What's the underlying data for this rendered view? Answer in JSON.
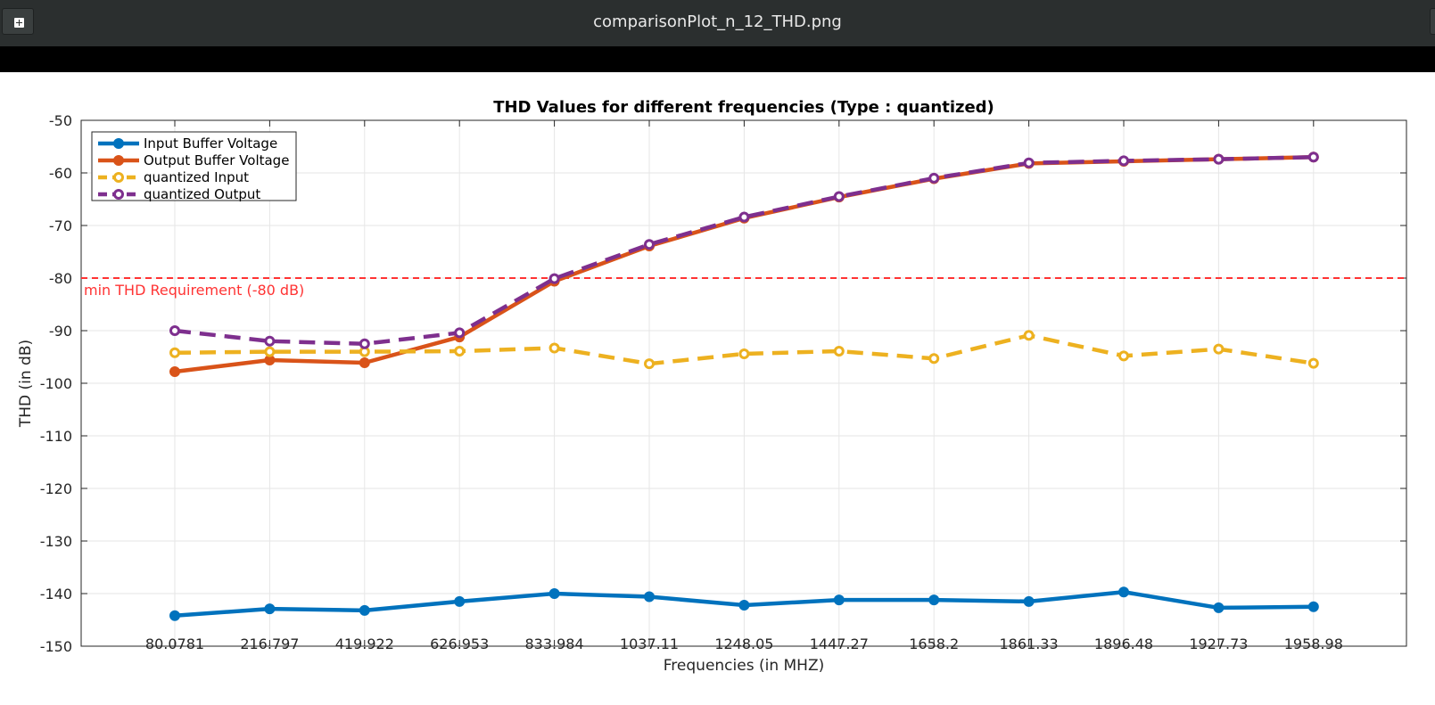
{
  "window": {
    "title": "comparisonPlot_n_12_THD.png"
  },
  "colors": {
    "titlebar": "#2b2f2f",
    "input_buffer": "#0072bd",
    "output_buffer": "#d95319",
    "quantized_input": "#edb120",
    "quantized_output": "#7e2f8e",
    "threshold": "#ff3333"
  },
  "chart_data": {
    "type": "line",
    "title": "THD Values for different frequencies (Type : quantized)",
    "xlabel": "Frequencies (in MHZ)",
    "ylabel": "THD (in dB)",
    "categories": [
      "80.0781",
      "216.797",
      "419.922",
      "626.953",
      "833.984",
      "1037.11",
      "1248.05",
      "1447.27",
      "1658.2",
      "1861.33",
      "1896.48",
      "1927.73",
      "1958.98"
    ],
    "ylim": [
      -150,
      -50
    ],
    "yticks": [
      -50,
      -60,
      -70,
      -80,
      -90,
      -100,
      -110,
      -120,
      -130,
      -140,
      -150
    ],
    "grid": true,
    "legend_position": "top-left",
    "series": [
      {
        "name": "Input Buffer Voltage",
        "color": "#0072bd",
        "dashed": false,
        "marker": "filled-circle",
        "values": [
          -144.2,
          -142.9,
          -143.2,
          -141.5,
          -140.0,
          -140.6,
          -142.2,
          -141.2,
          -141.2,
          -141.5,
          -139.7,
          -142.7,
          -142.5
        ]
      },
      {
        "name": "Output Buffer Voltage",
        "color": "#d95319",
        "dashed": false,
        "marker": "filled-circle",
        "values": [
          -97.8,
          -95.6,
          -96.1,
          -91.2,
          -80.6,
          -73.9,
          -68.6,
          -64.6,
          -61.1,
          -58.2,
          -57.8,
          -57.4,
          -57.0
        ]
      },
      {
        "name": "quantized Input",
        "color": "#edb120",
        "dashed": true,
        "marker": "open-circle",
        "values": [
          -94.2,
          -94.0,
          -94.0,
          -93.9,
          -93.3,
          -96.3,
          -94.4,
          -93.9,
          -95.3,
          -90.9,
          -94.8,
          -93.5,
          -96.2
        ]
      },
      {
        "name": "quantized Output",
        "color": "#7e2f8e",
        "dashed": true,
        "marker": "open-circle",
        "values": [
          -90.0,
          -92.0,
          -92.5,
          -90.4,
          -80.1,
          -73.6,
          -68.4,
          -64.5,
          -61.0,
          -58.1,
          -57.7,
          -57.4,
          -57.0
        ]
      }
    ],
    "annotations": [
      {
        "text": "min THD Requirement (-80 dB)",
        "y": -80,
        "color": "#ff3333",
        "style": "dashed"
      }
    ]
  }
}
